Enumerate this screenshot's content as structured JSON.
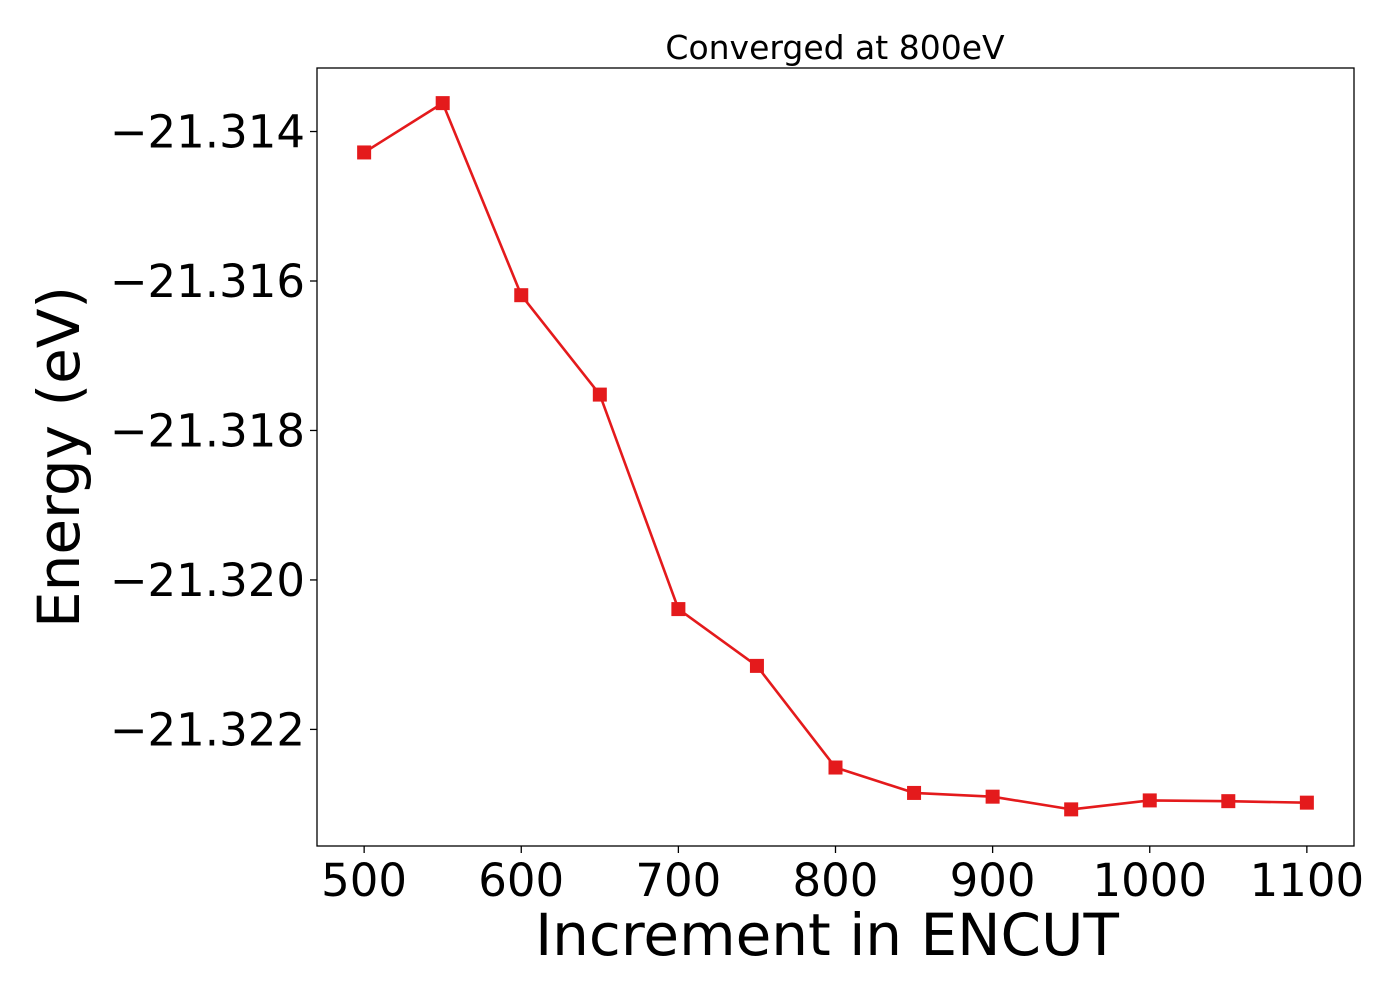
{
  "chart_data": {
    "type": "line",
    "title": "Converged at 800eV",
    "xlabel": "Increment in ENCUT",
    "ylabel": "Energy (eV)",
    "x": [
      500,
      550,
      600,
      650,
      700,
      750,
      800,
      850,
      900,
      950,
      1000,
      1050,
      1100
    ],
    "series": [
      {
        "values": [
          -21.31428,
          -21.31362,
          -21.31619,
          -21.31752,
          -21.32039,
          -21.32115,
          -21.32251,
          -21.32285,
          -21.3229,
          -21.32307,
          -21.32295,
          -21.32296,
          -21.32298
        ],
        "color": "#e41a1c",
        "marker": "square"
      }
    ],
    "xlim": [
      470,
      1130
    ],
    "ylim": [
      -21.32356,
      -21.31315
    ],
    "xticks": [
      500,
      600,
      700,
      800,
      900,
      1000,
      1100
    ],
    "xtick_labels": [
      "500",
      "600",
      "700",
      "800",
      "900",
      "1000",
      "1100"
    ],
    "yticks": [
      -21.314,
      -21.316,
      -21.318,
      -21.32,
      -21.322
    ],
    "ytick_labels": [
      "−21.314",
      "−21.316",
      "−21.318",
      "−21.320",
      "−21.322"
    ],
    "grid": false,
    "legend": false
  }
}
